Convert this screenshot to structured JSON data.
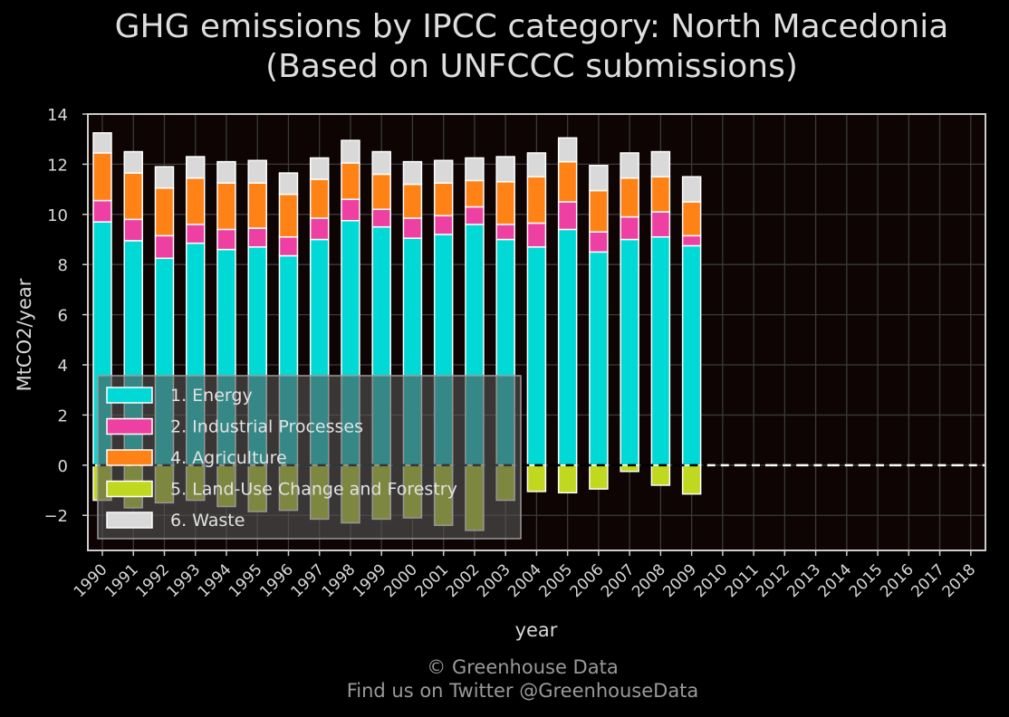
{
  "chart_data": {
    "type": "bar",
    "title_line1": "GHG emissions by IPCC category: North Macedonia",
    "title_line2": "(Based on UNFCCC submissions)",
    "xlabel": "year",
    "ylabel": "MtCO2/year",
    "ylim": [
      -3.4,
      14
    ],
    "yticks": [
      14,
      12,
      10,
      8,
      6,
      4,
      2,
      0,
      -2
    ],
    "grid": true,
    "legend_position": "lower-left",
    "categories": [
      "1990",
      "1991",
      "1992",
      "1993",
      "1994",
      "1995",
      "1996",
      "1997",
      "1998",
      "1999",
      "2000",
      "2001",
      "2002",
      "2003",
      "2004",
      "2005",
      "2006",
      "2007",
      "2008",
      "2009",
      "2010",
      "2011",
      "2012",
      "2013",
      "2014",
      "2015",
      "2016",
      "2017",
      "2018"
    ],
    "series": [
      {
        "name": "1. Energy",
        "color": "#00d9d6",
        "values": [
          9.7,
          8.95,
          8.25,
          8.85,
          8.6,
          8.7,
          8.35,
          9.0,
          9.75,
          9.5,
          9.05,
          9.2,
          9.6,
          9.0,
          8.7,
          9.4,
          8.5,
          9.0,
          9.1,
          8.75,
          null,
          null,
          null,
          null,
          null,
          null,
          null,
          null,
          null
        ]
      },
      {
        "name": "2. Industrial Processes",
        "color": "#ee3fa2",
        "values": [
          0.85,
          0.85,
          0.9,
          0.75,
          0.8,
          0.75,
          0.75,
          0.85,
          0.85,
          0.7,
          0.8,
          0.75,
          0.7,
          0.6,
          0.95,
          1.1,
          0.8,
          0.9,
          1.0,
          0.4,
          null,
          null,
          null,
          null,
          null,
          null,
          null,
          null,
          null
        ]
      },
      {
        "name": "4. Agriculture",
        "color": "#ff8216",
        "values": [
          1.9,
          1.85,
          1.9,
          1.85,
          1.85,
          1.8,
          1.7,
          1.55,
          1.45,
          1.4,
          1.35,
          1.3,
          1.05,
          1.7,
          1.85,
          1.6,
          1.65,
          1.55,
          1.4,
          1.35,
          null,
          null,
          null,
          null,
          null,
          null,
          null,
          null,
          null
        ]
      },
      {
        "name": "5. Land-Use Change and Forestry",
        "color": "#c0d81f",
        "values": [
          -1.4,
          -1.7,
          -1.5,
          -1.4,
          -1.65,
          -1.85,
          -1.8,
          -2.15,
          -2.3,
          -2.15,
          -2.1,
          -2.4,
          -2.6,
          -1.4,
          -1.05,
          -1.1,
          -0.95,
          -0.25,
          -0.8,
          -1.15,
          null,
          null,
          null,
          null,
          null,
          null,
          null,
          null,
          null
        ]
      },
      {
        "name": "6. Waste",
        "color": "#d9d9d9",
        "values": [
          0.8,
          0.85,
          0.85,
          0.85,
          0.85,
          0.9,
          0.85,
          0.85,
          0.9,
          0.9,
          0.9,
          0.9,
          0.9,
          1.0,
          0.95,
          0.95,
          1.0,
          1.0,
          1.0,
          1.0,
          null,
          null,
          null,
          null,
          null,
          null,
          null,
          null,
          null
        ]
      }
    ],
    "total_line_style": "dashed"
  },
  "footer": {
    "line1": "© Greenhouse Data",
    "line2": "Find us on Twitter @GreenhouseData"
  },
  "colors": {
    "background": "#000000",
    "plot_background": "#0e0404",
    "grid": "#3a3a3a",
    "axis": "#cccccc"
  }
}
